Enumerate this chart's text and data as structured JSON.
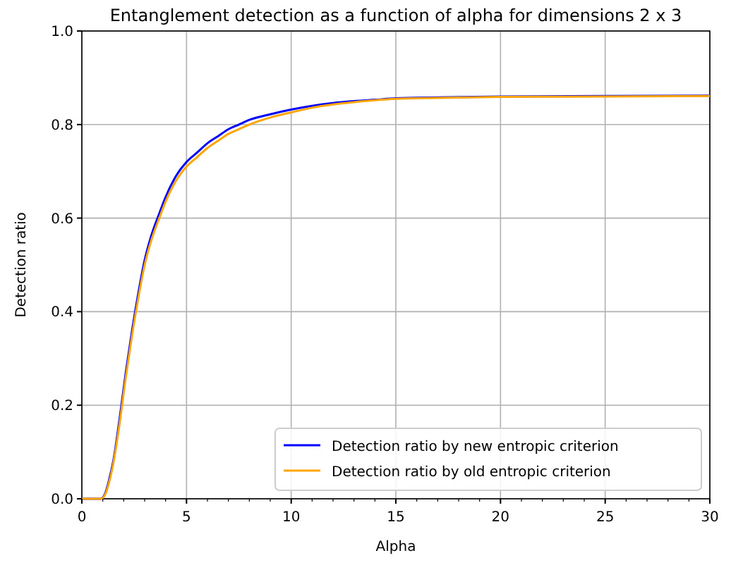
{
  "chart_data": {
    "type": "line",
    "title": "Entanglement detection as a function of alpha for dimensions 2 x 3",
    "xlabel": "Alpha",
    "ylabel": "Detection ratio",
    "xlim": [
      0,
      30
    ],
    "ylim": [
      0,
      1
    ],
    "xticks": [
      0,
      5,
      10,
      15,
      20,
      25,
      30
    ],
    "yticks": [
      {
        "value": 0,
        "label": "0.0"
      },
      0.2,
      0.4,
      0.6,
      0.8,
      {
        "value": 1,
        "label": "1.0"
      }
    ],
    "grid": true,
    "legend": "bottom right",
    "marker": "none",
    "line_style": "solid",
    "x": [
      0,
      0.9,
      1.1,
      1.3,
      1.5,
      1.8,
      2.1,
      2.4,
      2.7,
      3,
      3.3,
      3.7,
      4,
      4.5,
      5,
      5.5,
      6,
      6.5,
      7,
      7.5,
      8,
      9,
      10,
      11,
      12,
      13,
      14,
      15,
      17,
      20,
      25,
      30
    ],
    "series": [
      {
        "name": "Detection ratio by new entropic criterion",
        "color": "#0000ff",
        "values": [
          0,
          0,
          0.01,
          0.04,
          0.08,
          0.17,
          0.27,
          0.36,
          0.44,
          0.51,
          0.56,
          0.61,
          0.645,
          0.69,
          0.72,
          0.74,
          0.76,
          0.775,
          0.79,
          0.8,
          0.81,
          0.822,
          0.832,
          0.84,
          0.846,
          0.85,
          0.853,
          0.856,
          0.858,
          0.86,
          0.861,
          0.862
        ]
      },
      {
        "name": "Detection ratio by old entropic criterion",
        "color": "#ffa500",
        "values": [
          0,
          0,
          0.008,
          0.035,
          0.075,
          0.16,
          0.26,
          0.35,
          0.43,
          0.5,
          0.55,
          0.6,
          0.635,
          0.68,
          0.71,
          0.73,
          0.75,
          0.765,
          0.78,
          0.79,
          0.8,
          0.815,
          0.826,
          0.836,
          0.843,
          0.848,
          0.852,
          0.855,
          0.857,
          0.859,
          0.86,
          0.861
        ]
      }
    ]
  }
}
